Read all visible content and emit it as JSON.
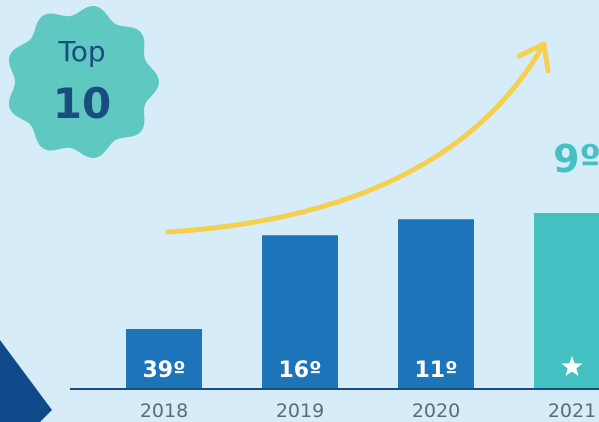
{
  "badge": {
    "line1": "Top",
    "line2": "10"
  },
  "colors": {
    "background": "#d6ecf8",
    "bar_primary": "#1e74b8",
    "bar_highlight": "#45c1c4",
    "badge_fill": "#5fc8c0",
    "badge_text_dark": "#1a4d7f",
    "arrow": "#f5d04f",
    "axis_line": "#1a4d7f",
    "corner_shape": "#114a8a"
  },
  "chart_data": {
    "type": "bar",
    "categories": [
      "2018",
      "2019",
      "2020",
      "2021"
    ],
    "values": [
      39,
      16,
      11,
      9
    ],
    "value_labels": [
      "39º",
      "16º",
      "11º",
      ""
    ],
    "bar_colors": [
      "#1e74b8",
      "#1e74b8",
      "#1e74b8",
      "#45c1c4"
    ],
    "highlight_label": "9º",
    "highlight_icon": "star-icon",
    "scale": "rank, lower is better; bar height grows as rank improves",
    "title": "",
    "xlabel": "",
    "ylabel": "",
    "grid": false,
    "legend": "none"
  }
}
